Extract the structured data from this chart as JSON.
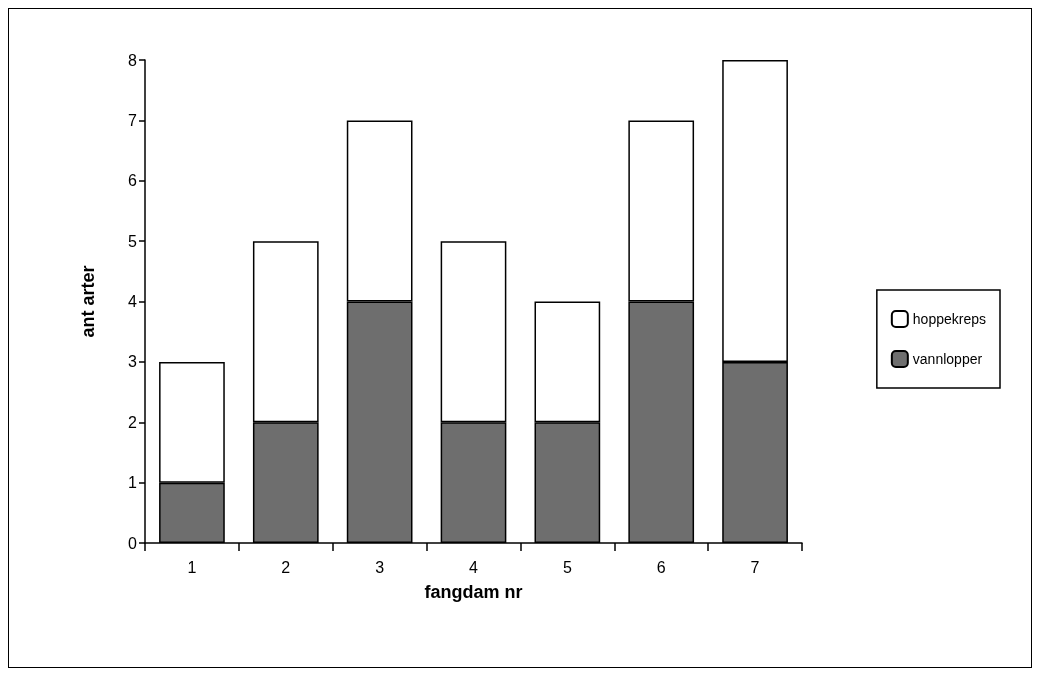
{
  "chart_data": {
    "type": "bar",
    "xlabel": "fangdam nr",
    "ylabel": "ant arter",
    "categories": [
      "1",
      "2",
      "3",
      "4",
      "5",
      "6",
      "7"
    ],
    "series": [
      {
        "name": "vannlopper",
        "color": "#6e6e6e",
        "values": [
          1,
          2,
          4,
          2,
          2,
          4,
          3
        ]
      },
      {
        "name": "hoppekreps",
        "color": "#ffffff",
        "values": [
          2,
          3,
          3,
          3,
          2,
          3,
          5
        ]
      }
    ],
    "stacked": true,
    "ylim": [
      0,
      8
    ],
    "yticks": [
      0,
      1,
      2,
      3,
      4,
      5,
      6,
      7,
      8
    ],
    "grid": false,
    "legend": "right"
  }
}
